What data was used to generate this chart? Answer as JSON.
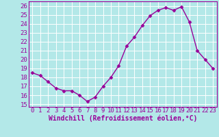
{
  "x": [
    0,
    1,
    2,
    3,
    4,
    5,
    6,
    7,
    8,
    9,
    10,
    11,
    12,
    13,
    14,
    15,
    16,
    17,
    18,
    19,
    20,
    21,
    22,
    23
  ],
  "y": [
    18.5,
    18.2,
    17.5,
    16.8,
    16.5,
    16.5,
    16.0,
    15.3,
    15.8,
    17.0,
    18.0,
    19.3,
    21.5,
    22.5,
    23.8,
    24.9,
    25.5,
    25.8,
    25.5,
    25.9,
    24.2,
    21.0,
    20.0,
    19.0
  ],
  "line_color": "#990099",
  "marker": "D",
  "marker_size": 2.5,
  "bg_color": "#b3e8e8",
  "grid_color": "#ffffff",
  "xlabel": "Windchill (Refroidissement éolien,°C)",
  "xlim_min": -0.5,
  "xlim_max": 23.5,
  "ylim_min": 14.7,
  "ylim_max": 26.5,
  "yticks": [
    15,
    16,
    17,
    18,
    19,
    20,
    21,
    22,
    23,
    24,
    25,
    26
  ],
  "xticks": [
    0,
    1,
    2,
    3,
    4,
    5,
    6,
    7,
    8,
    9,
    10,
    11,
    12,
    13,
    14,
    15,
    16,
    17,
    18,
    19,
    20,
    21,
    22,
    23
  ],
  "xlabel_fontsize": 7,
  "tick_fontsize": 6.5,
  "line_width": 1.0
}
